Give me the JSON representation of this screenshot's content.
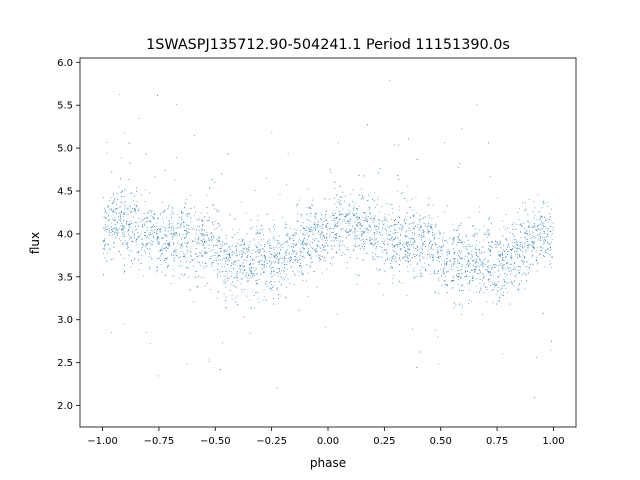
{
  "chart_data": {
    "type": "scatter",
    "title": "1SWASPJ135712.90-504241.1 Period 11151390.0s",
    "xlabel": "phase",
    "ylabel": "flux",
    "xlim": [
      -1.1,
      1.1
    ],
    "ylim": [
      1.75,
      6.05
    ],
    "x_ticks": [
      -1.0,
      -0.75,
      -0.5,
      -0.25,
      0.0,
      0.25,
      0.5,
      0.75,
      1.0
    ],
    "x_tick_labels": [
      "−1.00",
      "−0.75",
      "−0.50",
      "−0.25",
      "0.00",
      "0.25",
      "0.50",
      "0.75",
      "1.00"
    ],
    "y_ticks": [
      2.0,
      2.5,
      3.0,
      3.5,
      4.0,
      4.5,
      5.0,
      5.5,
      6.0
    ],
    "y_tick_labels": [
      "2.0",
      "2.5",
      "3.0",
      "3.5",
      "4.0",
      "4.5",
      "5.0",
      "5.5",
      "6.0"
    ],
    "grid": false,
    "legend": "none",
    "marker_color": "#1f77b4",
    "series": [
      {
        "phase_range": [
          -1.0,
          1.0
        ],
        "mean_flux_profile": [
          {
            "phase": -1.0,
            "flux": 4.0
          },
          {
            "phase": -0.95,
            "flux": 4.15
          },
          {
            "phase": -0.75,
            "flux": 3.95
          },
          {
            "phase": -0.55,
            "flux": 3.9
          },
          {
            "phase": -0.45,
            "flux": 3.65
          },
          {
            "phase": -0.3,
            "flux": 3.7
          },
          {
            "phase": -0.25,
            "flux": 3.6
          },
          {
            "phase": -0.1,
            "flux": 3.95
          },
          {
            "phase": 0.0,
            "flux": 4.0
          },
          {
            "phase": 0.05,
            "flux": 4.15
          },
          {
            "phase": 0.25,
            "flux": 3.95
          },
          {
            "phase": 0.45,
            "flux": 3.9
          },
          {
            "phase": 0.55,
            "flux": 3.65
          },
          {
            "phase": 0.7,
            "flux": 3.7
          },
          {
            "phase": 0.75,
            "flux": 3.6
          },
          {
            "phase": 0.9,
            "flux": 3.95
          },
          {
            "phase": 1.0,
            "flux": 4.0
          }
        ],
        "typical_spread": 0.35,
        "flux_min": 1.95,
        "flux_max": 5.85
      }
    ]
  }
}
